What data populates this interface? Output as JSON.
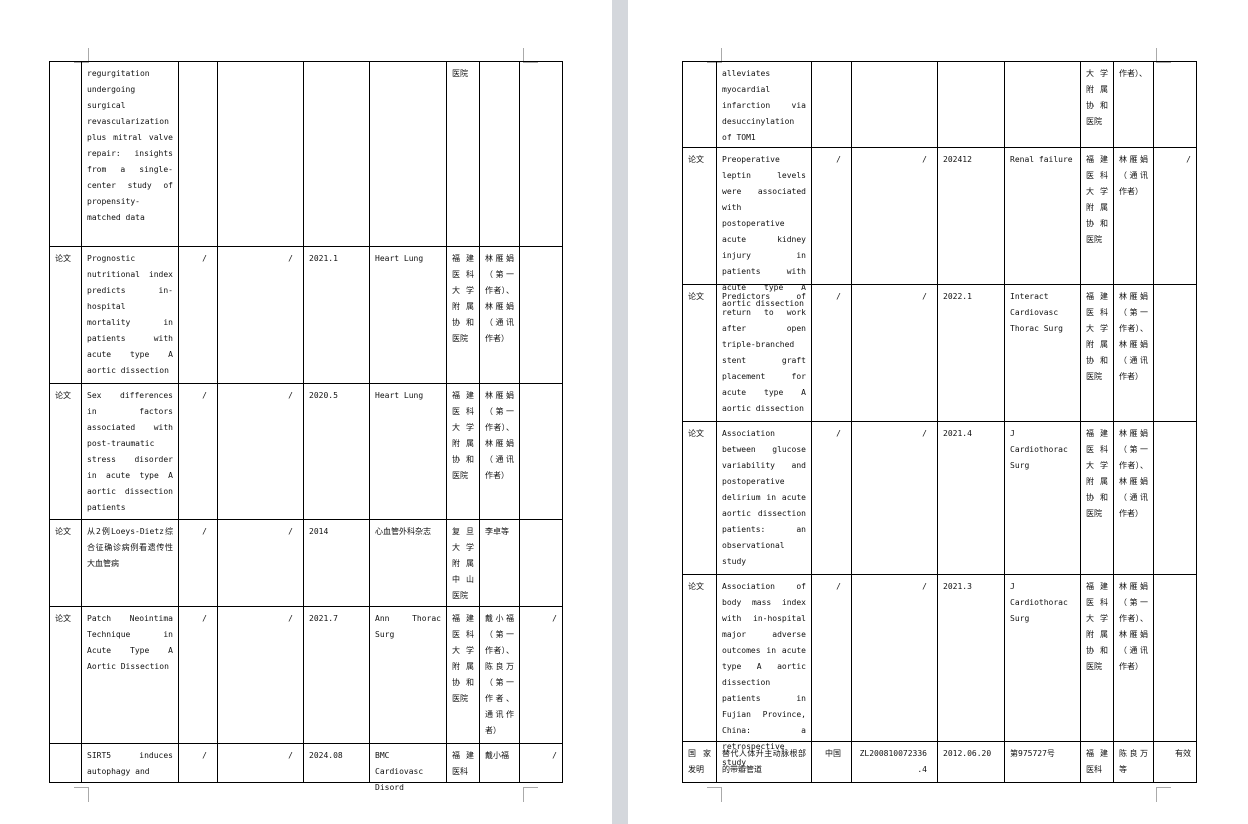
{
  "pages": [
    {
      "table": {
        "rows": [
          [
            null,
            "regurgitation undergoing surgical revascularization plus mitral valve repair: insights from a single-center study of propensity-matched data",
            null,
            null,
            null,
            null,
            "医院",
            null,
            null
          ],
          [
            "论文",
            "Prognostic nutritional index predicts in-hospital mortality in patients with acute type A aortic dissection",
            "/",
            "/",
            "2021.1",
            "Heart Lung",
            "福建医科大学附属协和医院",
            "林雁娟（第一作者）、林雁娟（通讯作者）",
            null
          ],
          [
            "论文",
            "Sex differences in factors associated with post-traumatic stress disorder in acute type A aortic dissection patients",
            "/",
            "/",
            "2020.5",
            "Heart Lung",
            "福建医科大学附属协和医院",
            "林雁娟（第一作者）、林雁娟（通讯作者）",
            null
          ],
          [
            "论文",
            "从2例Loeys-Dietz综合征确诊病例看遗传性大血管病",
            "/",
            "/",
            "2014",
            "心血管外科杂志",
            "复旦大学附属中山医院",
            "李卓等",
            null
          ],
          [
            "论文",
            "Patch Neointima Technique in Acute Type A Aortic Dissection",
            "/",
            "/",
            "2021.7",
            "Ann Thorac Surg",
            "福建医科大学附属协和医院",
            "戴小福（第一作者）、陈良万（第一作者、通讯作者）",
            "/"
          ],
          [
            null,
            "SIRT5 induces autophagy and",
            "/",
            "/",
            "2024.08",
            "BMC Cardiovasc Disord",
            "福建医科",
            "戴小福",
            "/"
          ]
        ]
      }
    },
    {
      "table": {
        "rows": [
          [
            null,
            "alleviates myocardial infarction via desuccinylation of TOM1",
            null,
            null,
            null,
            null,
            "大学附属协和医院",
            "作者）、",
            null
          ],
          [
            "论文",
            "Preoperative leptin levels were associated with postoperative acute kidney injury in patients with acute type A aortic dissection",
            "/",
            "/",
            "202412",
            "Renal failure",
            "福建医科大学附属协和医院",
            "林雁娟（通讯作者）",
            "/"
          ],
          [
            "论文",
            "Predictors of return to work after open triple-branched stent graft placement for acute type A aortic dissection",
            "/",
            "/",
            "2022.1",
            "Interact Cardiovasc Thorac Surg",
            "福建医科大学附属协和医院",
            "林雁娟（第一作者）、林雁娟（通讯作者）",
            null
          ],
          [
            "论文",
            "Association between glucose variability and postoperative delirium in acute aortic dissection patients: an observational study",
            "/",
            "/",
            "2021.4",
            "J Cardiothorac Surg",
            "福建医科大学附属协和医院",
            "林雁娟（第一作者）、林雁娟（通讯作者）",
            null
          ],
          [
            "论文",
            "Association of body mass index with in-hospital major adverse outcomes in acute type A aortic dissection patients in Fujian Province, China: a retrospective study",
            "/",
            "/",
            "2021.3",
            "J Cardiothorac Surg",
            "福建医科大学附属协和医院",
            "林雁娟（第一作者）、林雁娟（通讯作者）",
            null
          ],
          [
            "国家发明",
            "替代人体升主动脉根部的带瓣管道",
            "中国",
            "ZL200810072336.4",
            "2012.06.20",
            "第975727号",
            "福建医科",
            "陈良万等",
            "有效"
          ]
        ]
      }
    }
  ]
}
